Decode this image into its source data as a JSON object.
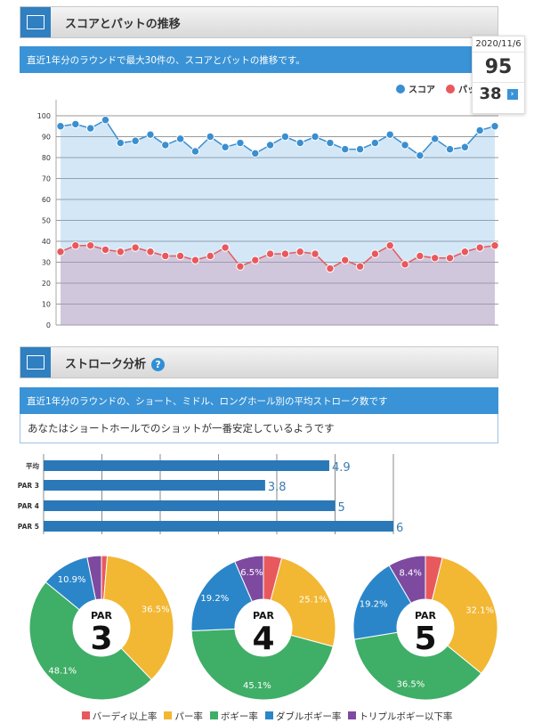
{
  "section1": {
    "title": "スコアとパットの推移",
    "description": "直近1年分のラウンドで最大30件の、スコアとパットの推移です。"
  },
  "tooltip": {
    "date": "2020/11/6",
    "score": "95",
    "putt": "38",
    "arrow": "›"
  },
  "chart_data": [
    {
      "type": "line",
      "title": "スコアとパットの推移",
      "ylim": [
        0,
        100
      ],
      "yticks": [
        "0",
        "10",
        "20",
        "30",
        "40",
        "50",
        "60",
        "70",
        "80",
        "90",
        "100"
      ],
      "legend": "top-right",
      "grid": true,
      "series": [
        {
          "name": "スコア",
          "color": "#3a8fd0",
          "values": [
            95,
            96,
            94,
            98,
            87,
            88,
            91,
            86,
            89,
            83,
            90,
            85,
            87,
            82,
            86,
            90,
            87,
            90,
            87,
            84,
            84,
            87,
            91,
            86,
            81,
            89,
            84,
            85,
            93,
            95
          ]
        },
        {
          "name": "パット",
          "color": "#e8595d",
          "values": [
            35,
            38,
            38,
            36,
            35,
            37,
            35,
            33,
            33,
            31,
            33,
            37,
            28,
            31,
            34,
            34,
            35,
            34,
            27,
            31,
            28,
            34,
            38,
            29,
            33,
            32,
            32,
            35,
            37,
            38
          ]
        }
      ]
    },
    {
      "type": "bar",
      "orientation": "horizontal",
      "categories": [
        "平均",
        "PAR 3",
        "PAR 4",
        "PAR 5"
      ],
      "values": [
        4.9,
        3.8,
        5,
        6
      ],
      "labels": [
        "4.9",
        "3.8",
        "5",
        "6"
      ],
      "xlim": [
        0,
        6
      ]
    },
    {
      "type": "pie",
      "title": "PAR 3",
      "par": "PAR",
      "number": "3",
      "categories": [
        "バーディ以上率",
        "パー率",
        "ボギー率",
        "ダブルボギー率",
        "トリプルボギー以下率"
      ],
      "values": [
        1.3,
        36.5,
        48.1,
        10.9,
        3.2
      ],
      "labels": [
        "",
        "36.5%",
        "48.1%",
        "10.9%",
        ""
      ]
    },
    {
      "type": "pie",
      "title": "PAR 4",
      "par": "PAR",
      "number": "4",
      "categories": [
        "バーディ以上率",
        "パー率",
        "ボギー率",
        "ダブルボギー率",
        "トリプルボギー以下率"
      ],
      "values": [
        4.1,
        25.1,
        45.1,
        19.2,
        6.5
      ],
      "labels": [
        "",
        "25.1%",
        "45.1%",
        "19.2%",
        "6.5%"
      ]
    },
    {
      "type": "pie",
      "title": "PAR 5",
      "par": "PAR",
      "number": "5",
      "categories": [
        "バーディ以上率",
        "パー率",
        "ボギー率",
        "ダブルボギー率",
        "トリプルボギー以下率"
      ],
      "values": [
        3.8,
        32.1,
        36.5,
        19.2,
        8.4
      ],
      "labels": [
        "",
        "32.1%",
        "36.5%",
        "19.2%",
        "8.4%"
      ]
    }
  ],
  "section2": {
    "title": "ストローク分析",
    "help": "?",
    "description": "直近1年分のラウンドの、ショート、ミドル、ロングホール別の平均ストローク数です",
    "note": "あなたはショートホールでのショットが一番安定しているようです"
  },
  "pie_legend": [
    {
      "label": "バーディ以上率",
      "color": "#e8595d"
    },
    {
      "label": "パー率",
      "color": "#f2b733"
    },
    {
      "label": "ボギー率",
      "color": "#3fae66"
    },
    {
      "label": "ダブルボギー率",
      "color": "#2a86c9"
    },
    {
      "label": "トリプルボギー以下率",
      "color": "#7d4aa0"
    }
  ]
}
